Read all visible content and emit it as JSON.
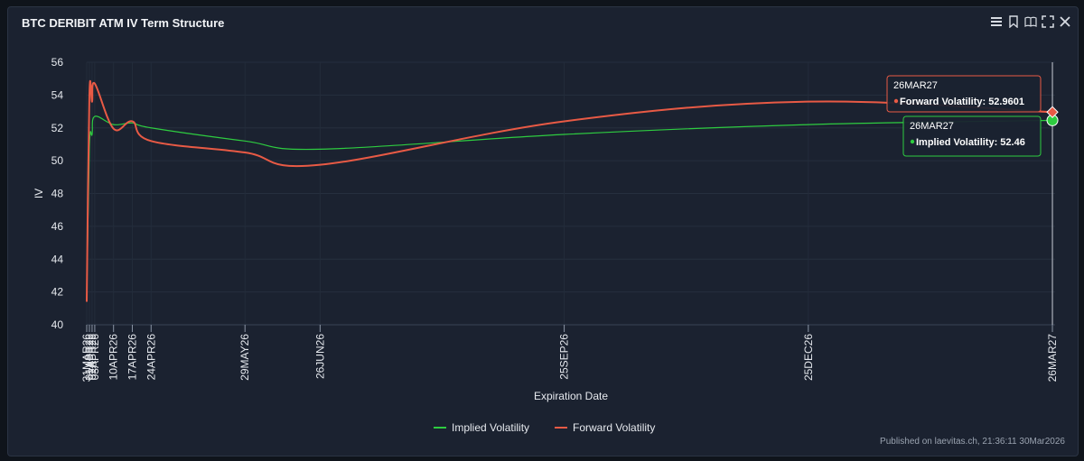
{
  "window": {
    "title": "BTC DERIBIT ATM IV Term Structure"
  },
  "toolbar": {
    "icons": [
      "menu-icon",
      "bookmark-icon",
      "book-icon",
      "fullscreen-icon",
      "close-icon"
    ]
  },
  "footer": {
    "text": "Published on laevitas.ch, 21:36:11 30Mar2026"
  },
  "colors": {
    "implied": "#2ecc40",
    "forward": "#e85a45",
    "background": "#1b2230"
  },
  "tooltips": [
    {
      "date": "26MAR27",
      "label": "Forward Volatility: 52.9601",
      "color": "#e85a45"
    },
    {
      "date": "26MAR27",
      "label": "Implied Volatility: 52.46",
      "color": "#2ecc40"
    }
  ],
  "chart_data": {
    "type": "line",
    "title": "BTC DERIBIT ATM IV Term Structure",
    "xlabel": "Expiration Date",
    "ylabel": "IV",
    "ylim": [
      40,
      56
    ],
    "yticks": [
      40,
      42,
      44,
      46,
      48,
      50,
      52,
      54,
      56
    ],
    "xlim_days": [
      0,
      361
    ],
    "x_ticks": [
      {
        "label": "31MAR26",
        "day": 0
      },
      {
        "label": "01APR26",
        "day": 1
      },
      {
        "label": "02APR26",
        "day": 2
      },
      {
        "label": "03APR26",
        "day": 3
      },
      {
        "label": "10APR26",
        "day": 10
      },
      {
        "label": "17APR26",
        "day": 17
      },
      {
        "label": "24APR26",
        "day": 24
      },
      {
        "label": "29MAY26",
        "day": 59
      },
      {
        "label": "26JUN26",
        "day": 87
      },
      {
        "label": "25SEP26",
        "day": 178
      },
      {
        "label": "25DEC26",
        "day": 269
      },
      {
        "label": "26MAR27",
        "day": 360
      }
    ],
    "legend": [
      "Implied Volatility",
      "Forward Volatility"
    ],
    "legend_position": "bottom-center",
    "series": [
      {
        "name": "Implied Volatility",
        "color": "#2ecc40",
        "points": [
          [
            0,
            41.4
          ],
          [
            1,
            50.8
          ],
          [
            2,
            51.6
          ],
          [
            3,
            52.7
          ],
          [
            10,
            52.2
          ],
          [
            17,
            52.3
          ],
          [
            24,
            52.0
          ],
          [
            59,
            51.2
          ],
          [
            87,
            50.7
          ],
          [
            178,
            51.6
          ],
          [
            269,
            52.2
          ],
          [
            360,
            52.46
          ]
        ]
      },
      {
        "name": "Forward Volatility",
        "color": "#e85a45",
        "points": [
          [
            0,
            41.4
          ],
          [
            1,
            54.0
          ],
          [
            2,
            53.6
          ],
          [
            3,
            54.7
          ],
          [
            10,
            51.95
          ],
          [
            17,
            52.4
          ],
          [
            24,
            51.2
          ],
          [
            59,
            50.5
          ],
          [
            87,
            49.75
          ],
          [
            178,
            52.4
          ],
          [
            269,
            53.6
          ],
          [
            360,
            52.96
          ]
        ]
      }
    ],
    "crosshair_at": "26MAR27"
  }
}
